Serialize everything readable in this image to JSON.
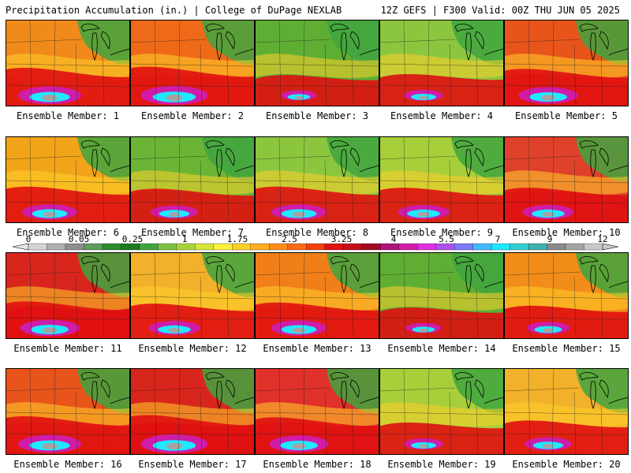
{
  "header": {
    "left": "Precipitation Accumulation (in.) | College of DuPage NEXLAB",
    "right": "12Z GEFS | F300 Valid: 00Z THU JUN 05 2025"
  },
  "members": [
    {
      "label": "Ensemble Member: 1",
      "base": "#f08a1a",
      "heavy": 0.8
    },
    {
      "label": "Ensemble Member: 2",
      "base": "#ef6a18",
      "heavy": 0.85
    },
    {
      "label": "Ensemble Member: 3",
      "base": "#5fae34",
      "heavy": 0.45
    },
    {
      "label": "Ensemble Member: 4",
      "base": "#8cc63f",
      "heavy": 0.5
    },
    {
      "label": "Ensemble Member: 5",
      "base": "#e8541a",
      "heavy": 0.75
    },
    {
      "label": "Ensemble Member: 6",
      "base": "#f2a419",
      "heavy": 0.7
    },
    {
      "label": "Ensemble Member: 7",
      "base": "#6bb536",
      "heavy": 0.6
    },
    {
      "label": "Ensemble Member: 8",
      "base": "#8cc63f",
      "heavy": 0.7
    },
    {
      "label": "Ensemble Member: 9",
      "base": "#a6cf3a",
      "heavy": 0.65
    },
    {
      "label": "Ensemble Member: 10",
      "base": "#e0412a",
      "heavy": 0.65
    },
    {
      "label": "Ensemble Member: 11",
      "base": "#d9261c",
      "heavy": 0.75
    },
    {
      "label": "Ensemble Member: 12",
      "base": "#f2b12a",
      "heavy": 0.65
    },
    {
      "label": "Ensemble Member: 13",
      "base": "#f07f1a",
      "heavy": 0.7
    },
    {
      "label": "Ensemble Member: 14",
      "base": "#5fae34",
      "heavy": 0.45
    },
    {
      "label": "Ensemble Member: 15",
      "base": "#f28d1a",
      "heavy": 0.55
    },
    {
      "label": "Ensemble Member: 16",
      "base": "#e8541a",
      "heavy": 0.8
    },
    {
      "label": "Ensemble Member: 17",
      "base": "#d9261c",
      "heavy": 0.85
    },
    {
      "label": "Ensemble Member: 18",
      "base": "#e0312a",
      "heavy": 0.75
    },
    {
      "label": "Ensemble Member: 19",
      "base": "#a6cf3a",
      "heavy": 0.5
    },
    {
      "label": "Ensemble Member: 20",
      "base": "#f2b12a",
      "heavy": 0.6
    }
  ],
  "legend": {
    "ticks": [
      "0",
      "0.05",
      "0.25",
      "1",
      "1.75",
      "2.5",
      "3.25",
      "4",
      "5.5",
      "7",
      "9",
      "12"
    ],
    "colors": [
      "#d4d4d4",
      "#b0b0b0",
      "#8e8e8e",
      "#5e9e5e",
      "#2e8b2e",
      "#1f7a1f",
      "#3fa53f",
      "#7cc242",
      "#a8d23c",
      "#d6e63a",
      "#fff23a",
      "#ffd02a",
      "#ffae22",
      "#ff8c1a",
      "#ff6a14",
      "#f2400f",
      "#e01010",
      "#c4101a",
      "#a00a20",
      "#b0147a",
      "#d01ca8",
      "#e030e0",
      "#b050f0",
      "#7a7af8",
      "#40b8ff",
      "#20e8ff",
      "#30d0d0",
      "#40b0b0",
      "#8a8a8a",
      "#a4a4a4",
      "#c8c8c8"
    ]
  }
}
